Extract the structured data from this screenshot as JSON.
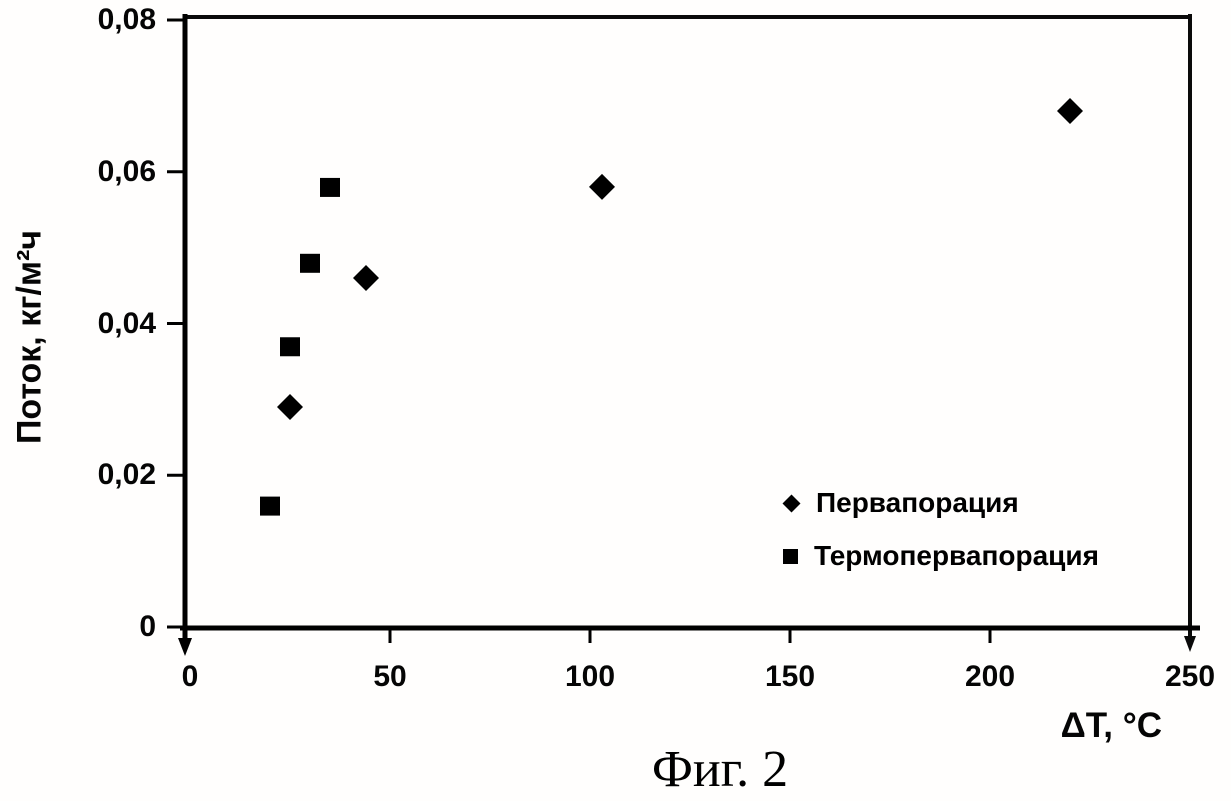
{
  "figure": {
    "caption": "Фиг. 2"
  },
  "chart_data": {
    "type": "scatter",
    "title": "",
    "xlabel": "ΔT, °C",
    "ylabel": "Поток, кг/м²ч",
    "xlim": [
      0,
      250
    ],
    "ylim": [
      0,
      0.08
    ],
    "x_ticks": [
      0,
      50,
      100,
      150,
      200,
      250
    ],
    "x_tick_labels": [
      "0",
      "50",
      "100",
      "150",
      "200",
      "250"
    ],
    "y_ticks": [
      0,
      0.02,
      0.04,
      0.06,
      0.08
    ],
    "y_tick_labels": [
      "0",
      "0,02",
      "0,04",
      "0,06",
      "0,08"
    ],
    "grid": false,
    "legend_position": "inside-bottom-right",
    "marker_color": "#000000",
    "series": [
      {
        "name": "Первапорация",
        "marker": "diamond",
        "color": "#000000",
        "points": [
          [
            25,
            0.029
          ],
          [
            44,
            0.046
          ],
          [
            103,
            0.058
          ],
          [
            220,
            0.068
          ]
        ]
      },
      {
        "name": "Термопервапорация",
        "marker": "square",
        "color": "#000000",
        "points": [
          [
            20,
            0.016
          ],
          [
            25,
            0.037
          ],
          [
            30,
            0.048
          ],
          [
            35,
            0.058
          ]
        ]
      }
    ]
  }
}
